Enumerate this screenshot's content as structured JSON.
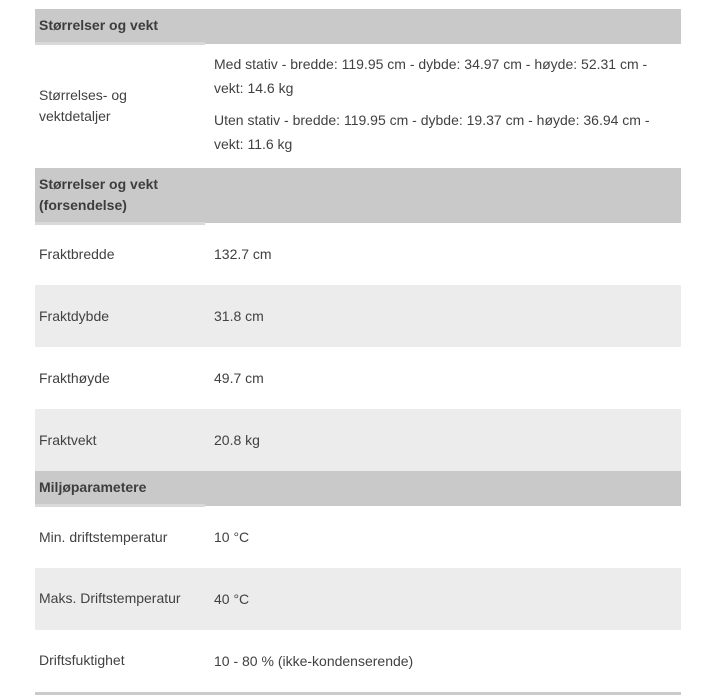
{
  "table": {
    "colors": {
      "section_header_bg": "#c9c9c9",
      "section_header_strip": "#d9d9d9",
      "row_alt_bg": "#ececec",
      "row_bg": "#ffffff",
      "text": "#414141"
    },
    "sections": [
      {
        "header": "Størrelser og vekt",
        "rows": [
          {
            "label": "Størrelses- og vektdetaljer",
            "values": [
              "Med stativ - bredde: 119.95 cm - dybde: 34.97 cm - høyde: 52.31 cm - vekt: 14.6 kg",
              "Uten stativ - bredde: 119.95 cm - dybde: 19.37 cm - høyde: 36.94 cm - vekt: 11.6 kg"
            ]
          }
        ]
      },
      {
        "header": "Størrelser og vekt (forsendelse)",
        "rows": [
          {
            "label": "Fraktbredde",
            "values": [
              "132.7 cm"
            ]
          },
          {
            "label": "Fraktdybde",
            "values": [
              "31.8 cm"
            ]
          },
          {
            "label": "Frakthøyde",
            "values": [
              "49.7 cm"
            ]
          },
          {
            "label": "Fraktvekt",
            "values": [
              "20.8 kg"
            ]
          }
        ]
      },
      {
        "header": "Miljøparametere",
        "rows": [
          {
            "label": "Min. driftstemperatur",
            "values": [
              "10 °C"
            ]
          },
          {
            "label": "Maks. Driftstemperatur",
            "values": [
              "40 °C"
            ]
          },
          {
            "label": "Driftsfuktighet",
            "values": [
              "10 - 80 % (ikke-kondenserende)"
            ]
          }
        ]
      }
    ]
  }
}
